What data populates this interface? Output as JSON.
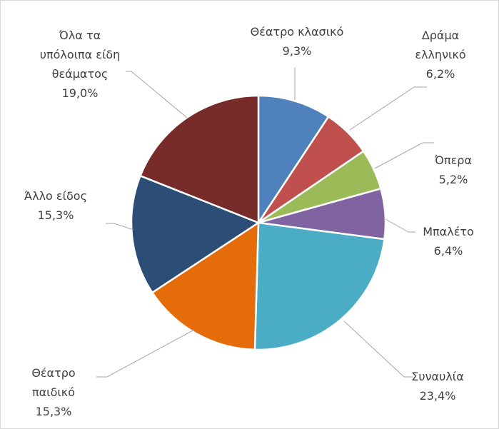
{
  "chart_data": {
    "type": "pie",
    "categories": [
      "Θέατρο κλασικό",
      "Δράμα ελληνικό",
      "Όπερα",
      "Μπαλέτο",
      "Συναυλία",
      "Θέατρο παιδικό",
      "Άλλο είδος",
      "Όλα τα υπόλοιπα είδη θεάματος"
    ],
    "values": [
      9.3,
      6.2,
      5.2,
      6.4,
      23.4,
      15.3,
      15.3,
      19.0
    ],
    "value_labels": [
      "9,3%",
      "6,2%",
      "5,2%",
      "6,4%",
      "23,4%",
      "15,3%",
      "15,3%",
      "19,0%"
    ],
    "colors": [
      "#4f81bd",
      "#c0504d",
      "#9bbb59",
      "#8064a2",
      "#4bacc6",
      "#e46c0a",
      "#2c4d75",
      "#772c2a"
    ]
  }
}
